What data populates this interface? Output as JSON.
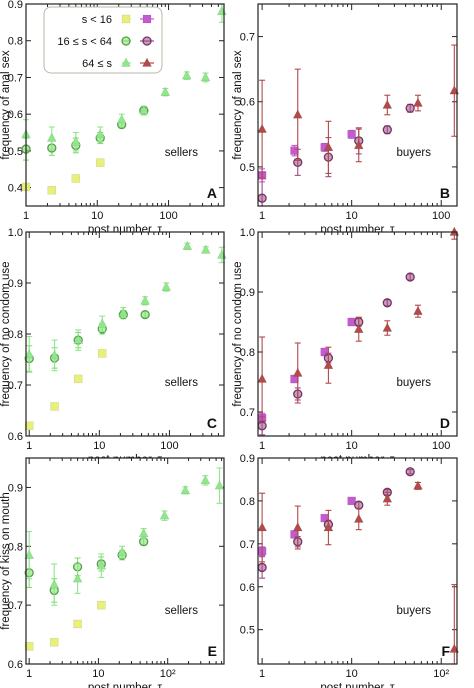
{
  "legend": {
    "entries": [
      {
        "label": "s < 16",
        "color_seller": "#e8f07a",
        "color_buyer": "#c45ad0",
        "marker": "square"
      },
      {
        "label": "16 ≤ s < 64",
        "color_seller": "#7ee06a",
        "color_buyer": "#a04a88",
        "marker": "circle"
      },
      {
        "label": "64 ≤ s",
        "color_seller": "#8ee88a",
        "color_buyer": "#b24a4a",
        "marker": "triangle"
      }
    ]
  },
  "colors": {
    "seller_small": "#e8f07a",
    "seller_mid": "#7ee06a",
    "seller_large": "#8ee88a",
    "buyer_small": "#c45ad0",
    "buyer_mid": "#a04a88",
    "buyer_large": "#b24a4a"
  },
  "chart_data": [
    {
      "panel": "A",
      "type": "scatter",
      "group": "sellers",
      "xlabel": "post number, τ",
      "ylabel": "frequency of anal sex",
      "xscale": "log",
      "xlim": [
        1,
        600
      ],
      "ylim": [
        0.35,
        0.9
      ],
      "xticks": [
        1,
        10,
        100
      ],
      "xticklabels": [
        "1",
        "10",
        "100"
      ],
      "yticks": [
        0.4,
        0.5,
        0.6,
        0.7,
        0.8,
        0.9
      ],
      "yticklabels": [
        "0.4",
        "0.5",
        "0.6",
        "0.7",
        "0.8",
        "0.9"
      ],
      "series": [
        {
          "name": "s < 16",
          "marker": "square",
          "color": "#e8f07a",
          "x": [
            1,
            2.3,
            5,
            11
          ],
          "y": [
            0.402,
            0.393,
            0.425,
            0.468
          ],
          "err": [
            0.008,
            0.006,
            0.006,
            0.007
          ]
        },
        {
          "name": "16 ≤ s < 64",
          "marker": "circle",
          "color": "#7ee06a",
          "x": [
            1,
            2.3,
            5,
            11,
            22,
            45
          ],
          "y": [
            0.505,
            0.508,
            0.515,
            0.535,
            0.572,
            0.61
          ],
          "err": [
            0.03,
            0.02,
            0.02,
            0.015,
            0.01,
            0.008
          ]
        },
        {
          "name": "64 ≤ s",
          "marker": "triangle",
          "color": "#8ee88a",
          "x": [
            1,
            2.3,
            5,
            11,
            22,
            45,
            90,
            180,
            330,
            560
          ],
          "y": [
            0.545,
            0.535,
            0.525,
            0.545,
            0.585,
            0.61,
            0.66,
            0.705,
            0.7,
            0.88
          ],
          "err": [
            0.04,
            0.03,
            0.025,
            0.02,
            0.015,
            0.012,
            0.01,
            0.01,
            0.012,
            0.03
          ]
        }
      ]
    },
    {
      "panel": "B",
      "type": "scatter",
      "group": "buyers",
      "xlabel": "post number, τ",
      "ylabel": "frequency of anal sex",
      "xscale": "log",
      "xlim": [
        0.9,
        150
      ],
      "ylim": [
        0.44,
        0.75
      ],
      "xticks": [
        1,
        10,
        100
      ],
      "xticklabels": [
        "1",
        "10",
        "100"
      ],
      "yticks": [
        0.5,
        0.6,
        0.7
      ],
      "yticklabels": [
        "0.5",
        "0.6",
        "0.7"
      ],
      "series": [
        {
          "name": "s < 16",
          "marker": "square",
          "color": "#c45ad0",
          "x": [
            1,
            2.3,
            5,
            10
          ],
          "y": [
            0.487,
            0.525,
            0.53,
            0.55
          ],
          "err": [
            0.01,
            0.008,
            0.006,
            0.006
          ]
        },
        {
          "name": "16 ≤ s < 64",
          "marker": "circle",
          "color": "#a04a88",
          "x": [
            1,
            2.5,
            5.5,
            12,
            25,
            45
          ],
          "y": [
            0.452,
            0.507,
            0.515,
            0.54,
            0.557,
            0.59
          ],
          "err": [
            0.04,
            0.02,
            0.03,
            0.02,
            0.006,
            0.006
          ]
        },
        {
          "name": "64 ≤ s",
          "marker": "triangle",
          "color": "#b24a4a",
          "x": [
            1,
            2.5,
            5.5,
            12,
            25,
            55,
            140
          ],
          "y": [
            0.558,
            0.58,
            0.53,
            0.533,
            0.595,
            0.598,
            0.617
          ],
          "err": [
            0.075,
            0.07,
            0.04,
            0.025,
            0.015,
            0.012,
            0.07
          ]
        }
      ]
    },
    {
      "panel": "C",
      "type": "scatter",
      "group": "sellers",
      "xlabel": "post number, τ",
      "ylabel": "frequency of no condom use",
      "xscale": "log",
      "xlim": [
        0.9,
        600
      ],
      "ylim": [
        0.6,
        1.0
      ],
      "xticks": [
        1,
        10,
        100
      ],
      "xticklabels": [
        "1",
        "10",
        "100"
      ],
      "yticks": [
        0.6,
        0.7,
        0.8,
        0.9,
        1.0
      ],
      "yticklabels": [
        "0.6",
        "0.7",
        "0.8",
        "0.9",
        "1.0"
      ],
      "series": [
        {
          "name": "s < 16",
          "marker": "square",
          "color": "#e8f07a",
          "x": [
            1,
            2.3,
            5,
            11
          ],
          "y": [
            0.62,
            0.658,
            0.712,
            0.762
          ],
          "err": [
            0.006,
            0.005,
            0.005,
            0.006
          ]
        },
        {
          "name": "16 ≤ s < 64",
          "marker": "circle",
          "color": "#7ee06a",
          "x": [
            1,
            2.3,
            5,
            11,
            22,
            45
          ],
          "y": [
            0.752,
            0.753,
            0.788,
            0.81,
            0.838,
            0.838
          ],
          "err": [
            0.025,
            0.02,
            0.015,
            0.01,
            0.008,
            0.006
          ]
        },
        {
          "name": "64 ≤ s",
          "marker": "triangle",
          "color": "#8ee88a",
          "x": [
            1,
            2.3,
            5,
            11,
            22,
            45,
            90,
            180,
            330,
            560
          ],
          "y": [
            0.76,
            0.758,
            0.788,
            0.82,
            0.842,
            0.865,
            0.892,
            0.972,
            0.965,
            0.955
          ],
          "err": [
            0.035,
            0.03,
            0.02,
            0.015,
            0.01,
            0.008,
            0.008,
            0.006,
            0.006,
            0.015
          ]
        }
      ]
    },
    {
      "panel": "D",
      "type": "scatter",
      "group": "buyers",
      "xlabel": "post number, τ",
      "ylabel": "frequency of no condom use",
      "xscale": "log",
      "xlim": [
        0.9,
        150
      ],
      "ylim": [
        0.66,
        1.0
      ],
      "xticks": [
        1,
        10,
        100
      ],
      "xticklabels": [
        "1",
        "10",
        "100"
      ],
      "yticks": [
        0.7,
        0.8,
        0.9,
        1.0
      ],
      "yticklabels": [
        "0.7",
        "0.8",
        "0.9",
        "1.0"
      ],
      "series": [
        {
          "name": "s < 16",
          "marker": "square",
          "color": "#c45ad0",
          "x": [
            1,
            2.3,
            5,
            10
          ],
          "y": [
            0.69,
            0.755,
            0.8,
            0.85
          ],
          "err": [
            0.008,
            0.006,
            0.006,
            0.006
          ]
        },
        {
          "name": "16 ≤ s < 64",
          "marker": "circle",
          "color": "#a04a88",
          "x": [
            1,
            2.5,
            5.5,
            12,
            25,
            45
          ],
          "y": [
            0.677,
            0.73,
            0.79,
            0.85,
            0.882,
            0.925
          ],
          "err": [
            0.015,
            0.01,
            0.008,
            0.007,
            0.005,
            0.005
          ]
        },
        {
          "name": "64 ≤ s",
          "marker": "triangle",
          "color": "#b24a4a",
          "x": [
            1,
            2.5,
            5.5,
            12,
            25,
            55,
            140
          ],
          "y": [
            0.755,
            0.765,
            0.778,
            0.838,
            0.84,
            0.868,
            1.0
          ],
          "err": [
            0.07,
            0.05,
            0.03,
            0.02,
            0.012,
            0.01,
            0.012
          ]
        }
      ]
    },
    {
      "panel": "E",
      "type": "scatter",
      "group": "sellers",
      "xlabel": "post number, τ",
      "ylabel": "frequency of kiss on mouth",
      "xscale": "log",
      "xlim": [
        0.9,
        650
      ],
      "ylim": [
        0.6,
        0.95
      ],
      "xticks": [
        1,
        10,
        100
      ],
      "xticklabels": [
        "1",
        "10",
        "10²"
      ],
      "yticks": [
        0.6,
        0.7,
        0.8,
        0.9
      ],
      "yticklabels": [
        "0.6",
        "0.7",
        "0.8",
        "0.9"
      ],
      "series": [
        {
          "name": "s < 16",
          "marker": "square",
          "color": "#e8f07a",
          "x": [
            1,
            2.3,
            5,
            11
          ],
          "y": [
            0.63,
            0.637,
            0.668,
            0.7
          ],
          "err": [
            0.005,
            0.005,
            0.005,
            0.006
          ]
        },
        {
          "name": "16 ≤ s < 64",
          "marker": "circle",
          "color": "#7ee06a",
          "x": [
            1,
            2.3,
            5,
            11,
            22,
            45
          ],
          "y": [
            0.755,
            0.725,
            0.765,
            0.77,
            0.785,
            0.808
          ],
          "err": [
            0.025,
            0.02,
            0.015,
            0.012,
            0.008,
            0.006
          ]
        },
        {
          "name": "64 ≤ s",
          "marker": "triangle",
          "color": "#8ee88a",
          "x": [
            1,
            2.3,
            5,
            11,
            22,
            45,
            90,
            180,
            350,
            560
          ],
          "y": [
            0.785,
            0.735,
            0.745,
            0.767,
            0.79,
            0.822,
            0.852,
            0.895,
            0.912,
            0.903
          ],
          "err": [
            0.04,
            0.035,
            0.025,
            0.02,
            0.01,
            0.008,
            0.008,
            0.006,
            0.008,
            0.03
          ]
        }
      ]
    },
    {
      "panel": "F",
      "type": "scatter",
      "group": "buyers",
      "xlabel": "post number, τ",
      "ylabel": "",
      "xscale": "log",
      "xlim": [
        0.9,
        150
      ],
      "ylim": [
        0.42,
        0.9
      ],
      "xticks": [
        1,
        10,
        100
      ],
      "xticklabels": [
        "1",
        "10",
        "10²"
      ],
      "yticks": [
        0.5,
        0.6,
        0.7,
        0.8,
        0.9
      ],
      "yticklabels": [
        "0.5",
        "0.6",
        "0.7",
        "0.8",
        "0.9"
      ],
      "series": [
        {
          "name": "s < 16",
          "marker": "square",
          "color": "#c45ad0",
          "x": [
            1,
            2.3,
            5,
            10
          ],
          "y": [
            0.683,
            0.722,
            0.76,
            0.8
          ],
          "err": [
            0.01,
            0.008,
            0.006,
            0.005
          ]
        },
        {
          "name": "16 ≤ s < 64",
          "marker": "circle",
          "color": "#a04a88",
          "x": [
            1,
            2.5,
            5.5,
            12,
            25,
            45
          ],
          "y": [
            0.645,
            0.705,
            0.745,
            0.79,
            0.82,
            0.868
          ],
          "err": [
            0.025,
            0.012,
            0.01,
            0.008,
            0.006,
            0.005
          ]
        },
        {
          "name": "64 ≤ s",
          "marker": "triangle",
          "color": "#b24a4a",
          "x": [
            1,
            2.5,
            5.5,
            12,
            25,
            55,
            140
          ],
          "y": [
            0.738,
            0.738,
            0.738,
            0.758,
            0.805,
            0.835,
            0.455
          ],
          "err": [
            0.08,
            0.05,
            0.04,
            0.025,
            0.015,
            0.008,
            0.15
          ]
        }
      ]
    }
  ]
}
